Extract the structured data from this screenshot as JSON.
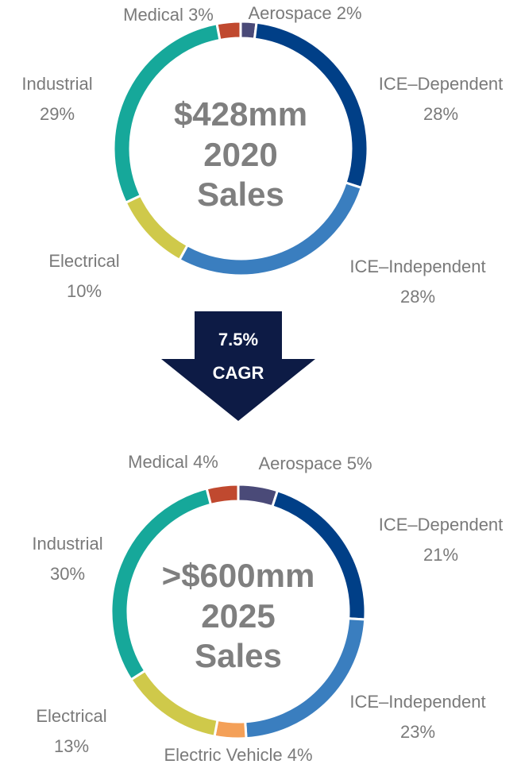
{
  "chart_data": [
    {
      "type": "pie",
      "donut": true,
      "center_text": [
        "$428mm",
        "2020",
        "Sales"
      ],
      "categories": [
        "Aerospace",
        "ICE–Dependent",
        "ICE–Independent",
        "Electrical",
        "Industrial",
        "Medical"
      ],
      "values": [
        2,
        28,
        28,
        10,
        29,
        3
      ],
      "value_labels": [
        "2%",
        "28%",
        "28%",
        "10%",
        "29%",
        "3%"
      ],
      "colors": [
        "#4a4a78",
        "#003f87",
        "#3a7ebf",
        "#cfc94a",
        "#16a89a",
        "#c0492f"
      ]
    },
    {
      "type": "pie",
      "donut": true,
      "center_text": [
        ">$600mm",
        "2025",
        "Sales"
      ],
      "categories": [
        "Aerospace",
        "ICE–Dependent",
        "ICE–Independent",
        "Electric Vehicle",
        "Electrical",
        "Industrial",
        "Medical"
      ],
      "values": [
        5,
        21,
        23,
        4,
        13,
        30,
        4
      ],
      "value_labels": [
        "5%",
        "21%",
        "23%",
        "4%",
        "13%",
        "30%",
        "4%"
      ],
      "colors": [
        "#4a4a78",
        "#003f87",
        "#3a7ebf",
        "#f4a058",
        "#cfc94a",
        "#16a89a",
        "#c0492f"
      ]
    }
  ],
  "arrow": {
    "value_label": "7.5%",
    "label": "CAGR"
  }
}
